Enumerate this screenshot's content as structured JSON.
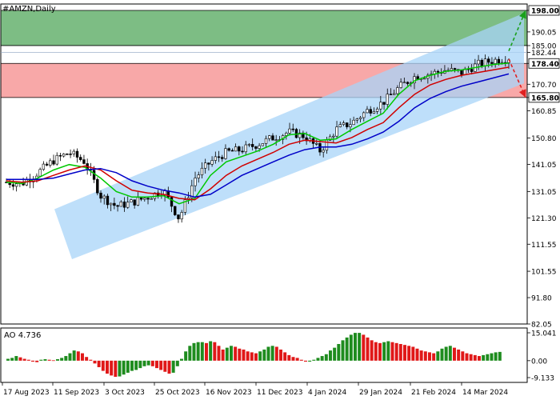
{
  "chart_data": {
    "type": "candlestick",
    "title": "#AMZN,Daily",
    "price_axis": {
      "min": 82.05,
      "max": 198.0,
      "ticks": [
        "198.00",
        "190.05",
        "185.00",
        "182.44",
        "178.40",
        "170.70",
        "165.80",
        "160.85",
        "150.80",
        "141.05",
        "131.05",
        "121.30",
        "111.55",
        "101.55",
        "91.80",
        "82.05"
      ]
    },
    "date_ticks": [
      "17 Aug 2023",
      "11 Sep 2023",
      "3 Oct 2023",
      "25 Oct 2023",
      "16 Nov 2023",
      "11 Dec 2023",
      "4 Jan 2024",
      "29 Jan 2024",
      "21 Feb 2024",
      "14 Mar 2024"
    ],
    "zones": [
      {
        "name": "upper-target-zone",
        "from": 185.0,
        "to": 198.0,
        "color": "#7dbd84"
      },
      {
        "name": "lower-target-zone",
        "from": 165.8,
        "to": 178.4,
        "color": "#f8a8a8"
      }
    ],
    "level_labels": [
      {
        "value": "198.00",
        "style": "boxed"
      },
      {
        "value": "185.00",
        "style": "plain"
      },
      {
        "value": "182.44",
        "style": "plain"
      },
      {
        "value": "178.40",
        "style": "boxed"
      },
      {
        "value": "165.80",
        "style": "boxed"
      }
    ],
    "channel": {
      "start_date": "Sep 2023",
      "start_low": 106.0,
      "start_high": 124.5,
      "end_date": "Mar 2024",
      "end_low": 171.0,
      "end_high": 197.0,
      "color": "#a8d4f8"
    },
    "closes": [
      {
        "date": "17 Aug 2023",
        "close": 134.5
      },
      {
        "date": "24 Aug 2023",
        "close": 134.0
      },
      {
        "date": "31 Aug 2023",
        "close": 138.0
      },
      {
        "date": "7 Sep 2023",
        "close": 142.5
      },
      {
        "date": "11 Sep 2023",
        "close": 145.5
      },
      {
        "date": "15 Sep 2023",
        "close": 142.0
      },
      {
        "date": "21 Sep 2023",
        "close": 129.5
      },
      {
        "date": "28 Sep 2023",
        "close": 125.5
      },
      {
        "date": "3 Oct 2023",
        "close": 127.0
      },
      {
        "date": "10 Oct 2023",
        "close": 129.0
      },
      {
        "date": "17 Oct 2023",
        "close": 131.5
      },
      {
        "date": "25 Oct 2023",
        "close": 121.0
      },
      {
        "date": "1 Nov 2023",
        "close": 136.0
      },
      {
        "date": "8 Nov 2023",
        "close": 142.0
      },
      {
        "date": "16 Nov 2023",
        "close": 145.5
      },
      {
        "date": "24 Nov 2023",
        "close": 146.5
      },
      {
        "date": "1 Dec 2023",
        "close": 148.5
      },
      {
        "date": "11 Dec 2023",
        "close": 151.0
      },
      {
        "date": "18 Dec 2023",
        "close": 153.0
      },
      {
        "date": "27 Dec 2023",
        "close": 151.5
      },
      {
        "date": "4 Jan 2024",
        "close": 146.0
      },
      {
        "date": "11 Jan 2024",
        "close": 154.0
      },
      {
        "date": "19 Jan 2024",
        "close": 156.5
      },
      {
        "date": "26 Jan 2024",
        "close": 161.0
      },
      {
        "date": "29 Jan 2024",
        "close": 164.0
      },
      {
        "date": "5 Feb 2024",
        "close": 169.5
      },
      {
        "date": "12 Feb 2024",
        "close": 173.5
      },
      {
        "date": "21 Feb 2024",
        "close": 174.5
      },
      {
        "date": "28 Feb 2024",
        "close": 176.0
      },
      {
        "date": "6 Mar 2024",
        "close": 175.0
      },
      {
        "date": "14 Mar 2024",
        "close": 178.0
      },
      {
        "date": "21 Mar 2024",
        "close": 179.5
      },
      {
        "date": "27 Mar 2024",
        "close": 180.5
      }
    ],
    "series": [
      {
        "key": "green",
        "color": "#00c800",
        "values": [
          134.5,
          134.0,
          136.0,
          139.0,
          141.0,
          140.0,
          136.0,
          131.0,
          129.0,
          129.0,
          129.5,
          126.5,
          128.5,
          137.0,
          142.0,
          144.0,
          146.0,
          148.5,
          152.0,
          152.5,
          150.0,
          150.5,
          154.0,
          157.0,
          160.0,
          167.0,
          172.0,
          174.0,
          175.5,
          176.0,
          177.0,
          178.0,
          178.5
        ]
      },
      {
        "key": "red",
        "color": "#d00000",
        "values": [
          135.0,
          134.5,
          135.0,
          137.0,
          139.0,
          140.5,
          139.0,
          135.0,
          131.5,
          130.5,
          130.0,
          128.5,
          128.0,
          132.0,
          137.0,
          140.5,
          143.0,
          145.5,
          148.5,
          150.0,
          149.5,
          149.0,
          151.0,
          154.0,
          156.5,
          162.0,
          167.0,
          170.5,
          172.5,
          174.0,
          175.0,
          176.0,
          177.0
        ]
      },
      {
        "key": "blue",
        "color": "#0000c8",
        "values": [
          135.5,
          135.5,
          135.5,
          136.0,
          137.5,
          139.0,
          139.5,
          138.0,
          135.0,
          133.0,
          131.5,
          130.5,
          129.0,
          130.0,
          133.5,
          137.0,
          139.5,
          142.0,
          144.5,
          146.5,
          147.5,
          147.5,
          148.5,
          150.5,
          153.0,
          157.0,
          162.0,
          165.5,
          168.0,
          170.0,
          171.5,
          173.0,
          174.5
        ]
      }
    ],
    "projections": [
      {
        "name": "bullish-arrow",
        "color": "#1aa01a",
        "from_date": "27 Mar 2024",
        "from": 183.0,
        "to": 198.0
      },
      {
        "name": "bearish-arrow",
        "color": "#e02020",
        "from_date": "27 Mar 2024",
        "from": 180.0,
        "to": 165.8
      }
    ],
    "oscillator": {
      "label": "AO 4.736",
      "ticks": [
        "15.041",
        "0.00",
        "-9.133"
      ],
      "min": -9.133,
      "max": 15.041,
      "up_color": "#1e8c1e",
      "down_color": "#e01818",
      "values": [
        1.0,
        1.5,
        2.5,
        1.8,
        1.0,
        0.5,
        -0.5,
        -0.8,
        0.5,
        0.8,
        0.5,
        0.2,
        0.8,
        1.5,
        2.5,
        4.0,
        5.5,
        5.0,
        4.0,
        2.0,
        0.5,
        -1.5,
        -3.5,
        -5.5,
        -7.0,
        -8.0,
        -8.7,
        -8.5,
        -7.5,
        -6.5,
        -5.5,
        -5.0,
        -4.0,
        -3.0,
        -2.5,
        -3.0,
        -4.0,
        -5.0,
        -6.0,
        -7.0,
        -6.5,
        -3.0,
        1.0,
        5.0,
        8.0,
        9.5,
        10.0,
        10.0,
        9.5,
        10.5,
        10.0,
        8.0,
        6.0,
        7.0,
        8.0,
        7.5,
        6.5,
        6.0,
        5.0,
        4.5,
        4.0,
        5.0,
        6.0,
        7.5,
        8.0,
        7.5,
        6.0,
        4.5,
        3.0,
        2.0,
        1.5,
        0.5,
        -0.5,
        -0.5,
        0.5,
        1.5,
        2.5,
        3.5,
        5.5,
        7.0,
        9.0,
        11.0,
        12.5,
        14.0,
        15.0,
        15.0,
        14.0,
        12.5,
        11.0,
        10.0,
        9.5,
        10.0,
        10.5,
        10.0,
        9.5,
        9.0,
        8.5,
        8.0,
        7.5,
        6.5,
        5.5,
        5.0,
        4.5,
        4.0,
        5.0,
        6.5,
        7.5,
        8.0,
        7.0,
        6.0,
        5.0,
        4.0,
        3.5,
        3.0,
        2.5,
        3.0,
        3.5,
        4.0,
        4.5,
        4.736
      ]
    }
  }
}
